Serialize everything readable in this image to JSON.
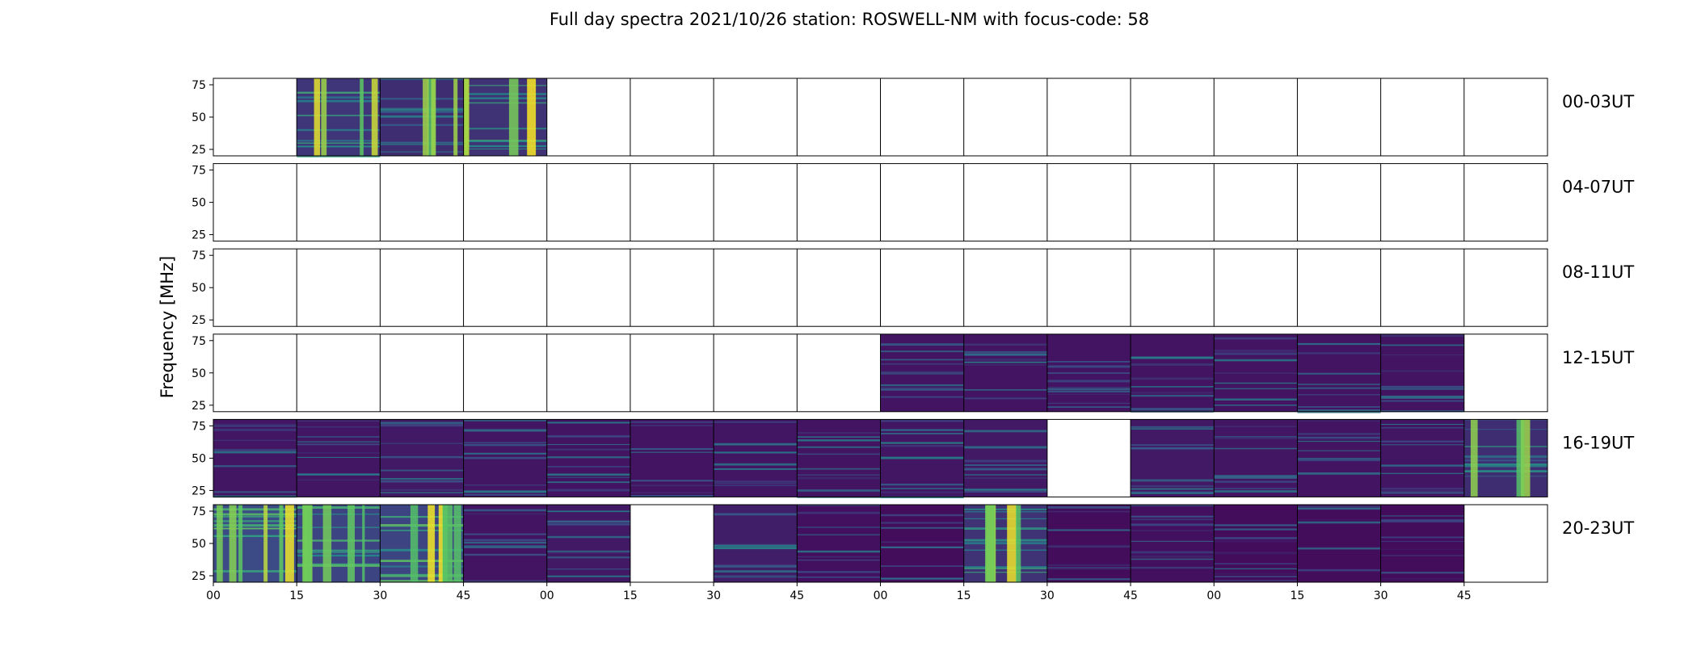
{
  "chart_data": {
    "type": "heatmap",
    "title": "Full day spectra 2021/10/26 station: ROSWELL-NM with focus-code: 58",
    "ylabel": "Frequency [MHz]",
    "y_ticks": [
      "25",
      "50",
      "75"
    ],
    "ylim": [
      20,
      80
    ],
    "x_ticks": [
      "00",
      "15",
      "30",
      "45",
      "00",
      "15",
      "30",
      "45",
      "00",
      "15",
      "30",
      "45",
      "00",
      "15",
      "30",
      "45"
    ],
    "columns_per_row": 16,
    "minutes_per_column": 15,
    "colormap": {
      "low": "#440154",
      "mid": "#21918c",
      "high": "#fde725"
    },
    "rows": [
      {
        "label": "00-03UT",
        "has_data": [
          0,
          1,
          1,
          1,
          0,
          0,
          0,
          0,
          0,
          0,
          0,
          0,
          0,
          0,
          0,
          0
        ],
        "intensity": [
          0,
          0.55,
          0.45,
          0.5,
          0,
          0,
          0,
          0,
          0,
          0,
          0,
          0,
          0,
          0,
          0,
          0
        ]
      },
      {
        "label": "04-07UT",
        "has_data": [
          0,
          0,
          0,
          0,
          0,
          0,
          0,
          0,
          0,
          0,
          0,
          0,
          0,
          0,
          0,
          0
        ],
        "intensity": [
          0,
          0,
          0,
          0,
          0,
          0,
          0,
          0,
          0,
          0,
          0,
          0,
          0,
          0,
          0,
          0
        ]
      },
      {
        "label": "08-11UT",
        "has_data": [
          0,
          0,
          0,
          0,
          0,
          0,
          0,
          0,
          0,
          0,
          0,
          0,
          0,
          0,
          0,
          0
        ],
        "intensity": [
          0,
          0,
          0,
          0,
          0,
          0,
          0,
          0,
          0,
          0,
          0,
          0,
          0,
          0,
          0,
          0
        ]
      },
      {
        "label": "12-15UT",
        "has_data": [
          0,
          0,
          0,
          0,
          0,
          0,
          0,
          0,
          1,
          1,
          1,
          1,
          1,
          1,
          1,
          0
        ],
        "intensity": [
          0,
          0,
          0,
          0,
          0,
          0,
          0,
          0,
          0.2,
          0.2,
          0.2,
          0.2,
          0.2,
          0.2,
          0.2,
          0
        ]
      },
      {
        "label": "16-19UT",
        "has_data": [
          1,
          1,
          1,
          1,
          1,
          1,
          1,
          1,
          1,
          1,
          0,
          1,
          1,
          1,
          1,
          1
        ],
        "intensity": [
          0.22,
          0.22,
          0.25,
          0.22,
          0.2,
          0.2,
          0.22,
          0.2,
          0.22,
          0.25,
          0,
          0.25,
          0.22,
          0.2,
          0.22,
          0.45
        ]
      },
      {
        "label": "20-23UT",
        "has_data": [
          1,
          1,
          1,
          1,
          1,
          0,
          1,
          1,
          1,
          1,
          1,
          1,
          1,
          1,
          1,
          0
        ],
        "intensity": [
          0.75,
          0.7,
          0.7,
          0.2,
          0.25,
          0,
          0.3,
          0.15,
          0.12,
          0.5,
          0.12,
          0.15,
          0.12,
          0.12,
          0.12,
          0
        ]
      }
    ]
  }
}
